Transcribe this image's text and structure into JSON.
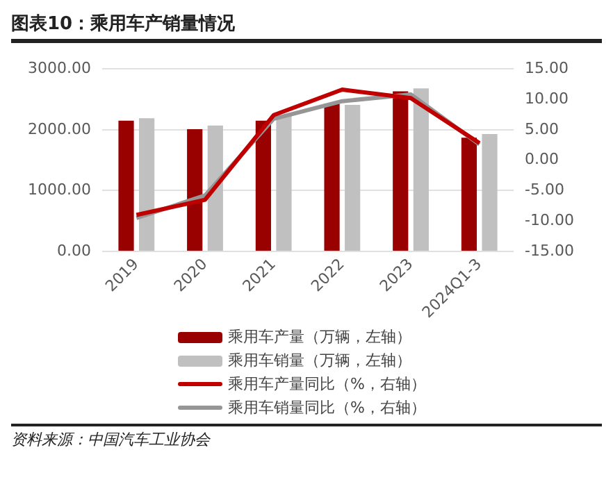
{
  "chart_data": {
    "type": "bar",
    "title": "图表10：乘用车产销量情况",
    "categories": [
      "2019",
      "2020",
      "2021",
      "2022",
      "2023",
      "2024Q1-3"
    ],
    "series": [
      {
        "name": "乘用车产量（万辆，左轴）",
        "color": "#990000",
        "values": [
          2150,
          2010,
          2150,
          2430,
          2630,
          1870
        ]
      },
      {
        "name": "乘用车销量（万辆，左轴）",
        "color": "#c0c0c0",
        "values": [
          2190,
          2070,
          2240,
          2410,
          2680,
          1930
        ]
      },
      {
        "name": "乘用车产量同比（%，右轴）",
        "type": "line",
        "axis": "y2",
        "color": "#c00000",
        "values": [
          -9.0,
          -6.5,
          7.4,
          11.6,
          10.2,
          2.8
        ]
      },
      {
        "name": "乘用车销量同比（%，右轴）",
        "type": "line",
        "axis": "y2",
        "color": "#969696",
        "values": [
          -9.5,
          -5.8,
          6.8,
          9.7,
          10.8,
          2.6
        ]
      }
    ],
    "ylim": [
      0,
      3000
    ],
    "yticks": [
      {
        "value": 0,
        "label": "0.00"
      },
      {
        "value": 1000,
        "label": "1000.00"
      },
      {
        "value": 2000,
        "label": "2000.00"
      },
      {
        "value": 3000,
        "label": "3000.00"
      }
    ],
    "y2lim": [
      -15,
      15
    ],
    "y2ticks": [
      {
        "value": -15,
        "label": "-15.00"
      },
      {
        "value": -10,
        "label": "-10.00"
      },
      {
        "value": -5,
        "label": "-5.00"
      },
      {
        "value": 0,
        "label": "0.00"
      },
      {
        "value": 5,
        "label": "5.00"
      },
      {
        "value": 10,
        "label": "10.00"
      },
      {
        "value": 15,
        "label": "15.00"
      }
    ],
    "grid": "y",
    "legend": "bottom",
    "marker": "none",
    "line_style": "solid",
    "annotations": [
      "资料来源：中国汽车工业协会"
    ]
  }
}
